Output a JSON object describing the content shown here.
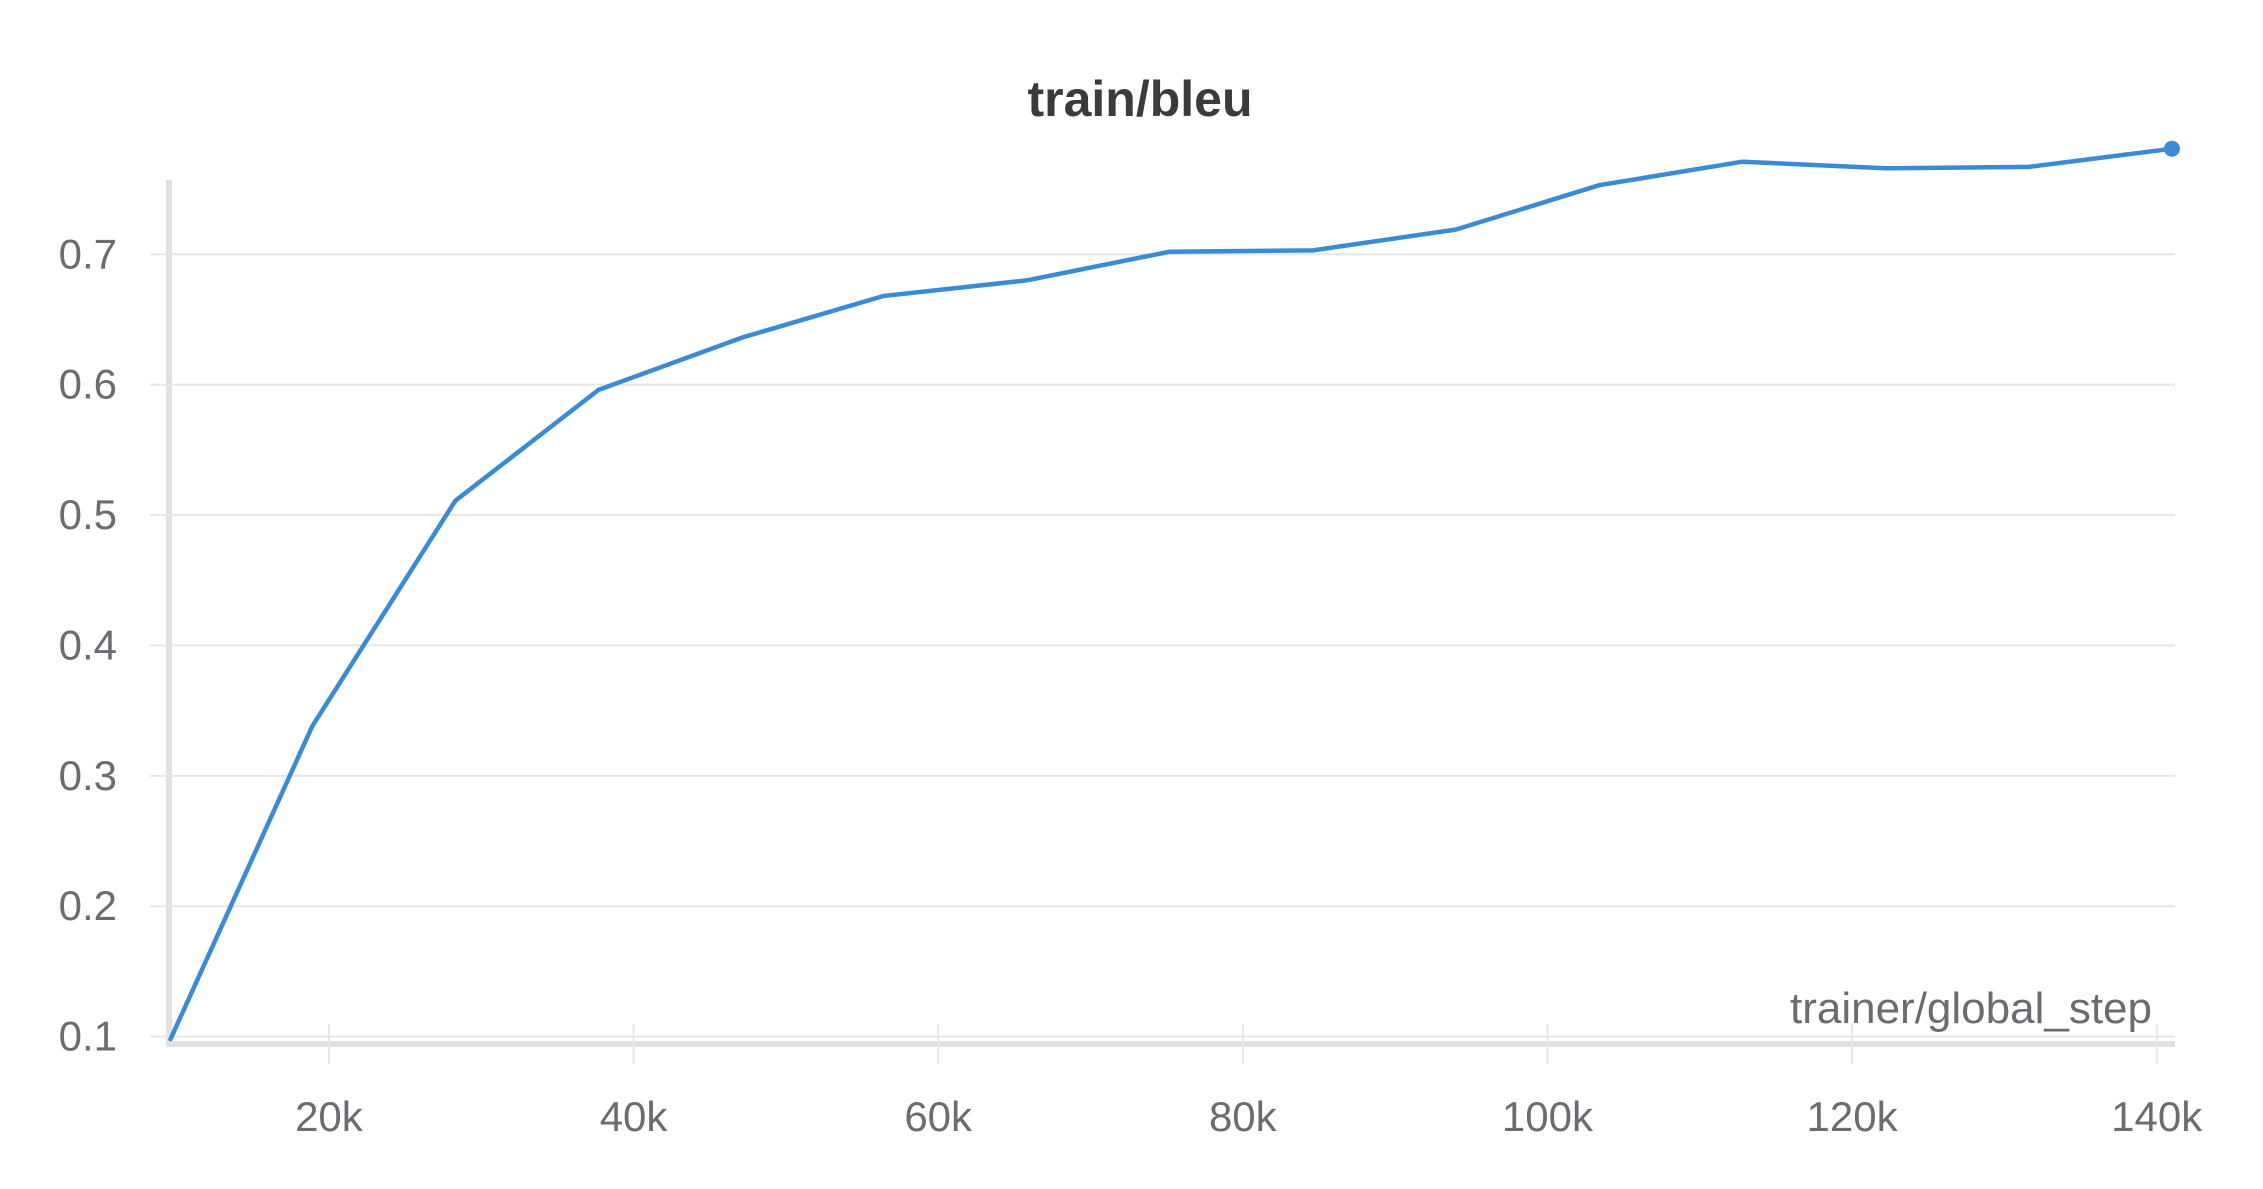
{
  "chart_data": {
    "type": "line",
    "title": "train/bleu",
    "xlabel": "trainer/global_step",
    "ylabel": "",
    "xlim": [
      9500,
      141200
    ],
    "ylim": [
      0.092,
      0.78
    ],
    "x_ticks": [
      20000,
      40000,
      60000,
      80000,
      100000,
      120000,
      140000
    ],
    "x_tick_labels": [
      "20k",
      "40k",
      "60k",
      "80k",
      "100k",
      "120k",
      "140k"
    ],
    "y_ticks": [
      0.1,
      0.2,
      0.3,
      0.4,
      0.5,
      0.6,
      0.7
    ],
    "y_tick_labels": [
      "0.1",
      "0.2",
      "0.3",
      "0.4",
      "0.5",
      "0.6",
      "0.7"
    ],
    "grid": "horizontal",
    "line_color": "#3a8ad5",
    "series": [
      {
        "x": [
          9600,
          18900,
          28300,
          37700,
          47100,
          56400,
          65800,
          75200,
          84600,
          94000,
          103400,
          112800,
          122200,
          131600,
          141000
        ],
        "y": [
          0.098,
          0.338,
          0.511,
          0.596,
          0.636,
          0.668,
          0.68,
          0.702,
          0.703,
          0.719,
          0.753,
          0.771,
          0.766,
          0.767,
          0.781
        ]
      }
    ]
  }
}
